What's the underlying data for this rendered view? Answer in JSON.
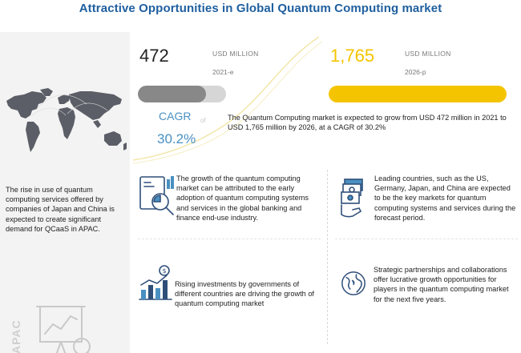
{
  "title": "Attractive Opportunities in Global Quantum Computing market",
  "left": {
    "text": "The rise in use of quantum computing services offered by companies of Japan and China is expected to create significant demand for QCaaS in APAC.",
    "region_label": "APAC"
  },
  "chart_data": {
    "type": "bar",
    "categories": [
      "2021-e",
      "2026-p"
    ],
    "values": [
      472,
      1765
    ],
    "value_labels": [
      "472",
      "1,765"
    ],
    "unit": "USD MILLION",
    "cagr_label": "CAGR",
    "cagr_of": "of",
    "cagr": "30.2%",
    "scale_max": 1765,
    "colors": {
      "2021-e": "#888888",
      "2026-p": "#f5c400"
    },
    "summary": "The Quantum Computing market is expected to grow from USD 472 million in 2021 to USD 1,765 million by 2026, at a CAGR of 30.2%"
  },
  "items": [
    {
      "icon": "finance-analysis-icon",
      "text": "The growth of the quantum computing market can be attributed to the early adoption of quantum computing systems and services in the global banking and finance end-use industry."
    },
    {
      "icon": "money-country-icon",
      "text": "Leading countries, such as the US, Germany, Japan, and China are expected to be the key markets for quantum computing systems and services during the forecast period."
    },
    {
      "icon": "investment-growth-icon",
      "text": "Rising investments by governments of different countries are driving the growth of quantum computing market"
    },
    {
      "icon": "globe-partnership-icon",
      "text": "Strategic partnerships and collaborations offer lucrative growth opportunities for players in the quantum computing market for the next five years."
    }
  ],
  "colors": {
    "title": "#1f5f9e",
    "accent": "#4a90c2",
    "highlight": "#f5c400",
    "dark_bar": "#888888"
  }
}
